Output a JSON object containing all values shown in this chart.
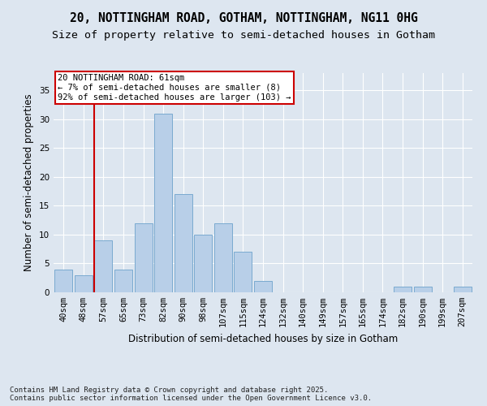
{
  "title_line1": "20, NOTTINGHAM ROAD, GOTHAM, NOTTINGHAM, NG11 0HG",
  "title_line2": "Size of property relative to semi-detached houses in Gotham",
  "xlabel": "Distribution of semi-detached houses by size in Gotham",
  "ylabel": "Number of semi-detached properties",
  "bin_labels": [
    "40sqm",
    "48sqm",
    "57sqm",
    "65sqm",
    "73sqm",
    "82sqm",
    "90sqm",
    "98sqm",
    "107sqm",
    "115sqm",
    "124sqm",
    "132sqm",
    "140sqm",
    "149sqm",
    "157sqm",
    "165sqm",
    "174sqm",
    "182sqm",
    "190sqm",
    "199sqm",
    "207sqm"
  ],
  "bar_values": [
    4,
    3,
    9,
    4,
    12,
    31,
    17,
    10,
    12,
    7,
    2,
    0,
    0,
    0,
    0,
    0,
    0,
    1,
    1,
    0,
    1
  ],
  "bar_color": "#b8cfe8",
  "bar_edge_color": "#7aaad0",
  "background_color": "#dde6f0",
  "grid_color": "#ffffff",
  "vline_color": "#cc0000",
  "vline_x_index": 2,
  "annotation_title": "20 NOTTINGHAM ROAD: 61sqm",
  "annotation_line1": "← 7% of semi-detached houses are smaller (8)",
  "annotation_line2": "92% of semi-detached houses are larger (103) →",
  "annotation_box_color": "#cc0000",
  "ylim": [
    0,
    38
  ],
  "yticks": [
    0,
    5,
    10,
    15,
    20,
    25,
    30,
    35
  ],
  "footer_line1": "Contains HM Land Registry data © Crown copyright and database right 2025.",
  "footer_line2": "Contains public sector information licensed under the Open Government Licence v3.0.",
  "title_fontsize": 10.5,
  "subtitle_fontsize": 9.5,
  "axis_label_fontsize": 8.5,
  "tick_fontsize": 7.5,
  "annotation_fontsize": 7.5,
  "footer_fontsize": 6.5
}
